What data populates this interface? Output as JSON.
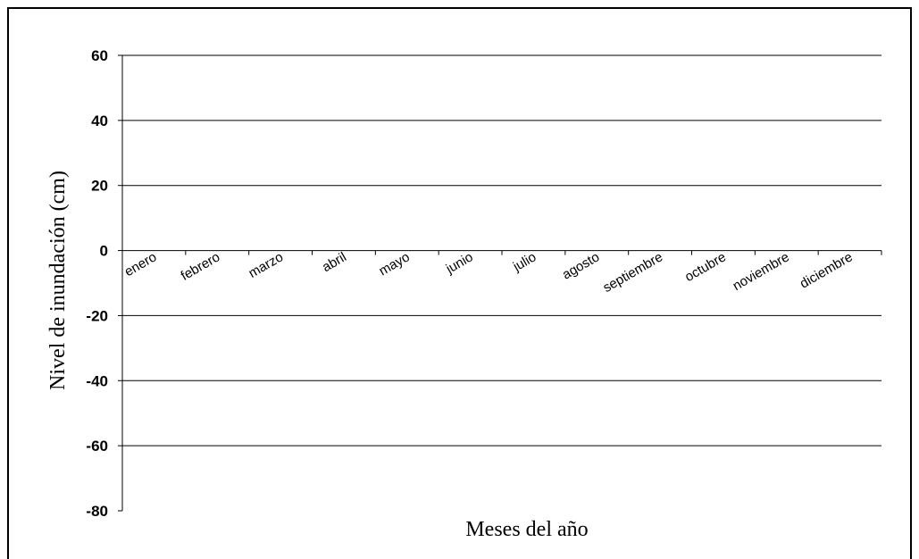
{
  "chart_data": {
    "type": "line",
    "categories": [
      "enero",
      "febrero",
      "marzo",
      "abril",
      "mayo",
      "junio",
      "julio",
      "agosto",
      "septiembre",
      "octubre",
      "noviembre",
      "diciembre"
    ],
    "series": [],
    "ylabel": "Nivel de inundación (cm)",
    "xlabel": "Meses del año",
    "ylim": [
      -80,
      60
    ],
    "yticks": [
      60,
      40,
      20,
      0,
      -20,
      -40,
      -60,
      -80
    ],
    "ytick_labels": [
      "60",
      "40",
      "20",
      "0",
      "-20",
      "-40",
      "-60",
      "-80"
    ],
    "grid": true,
    "legend": "none",
    "colors": {
      "axis": "#000000",
      "grid": "#000000",
      "background": "#ffffff"
    }
  }
}
